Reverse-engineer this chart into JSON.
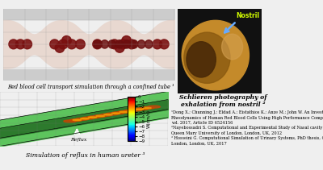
{
  "bg_color": "#efefef",
  "title_rbc": "Red blood cell transport simulation through a confined tube ¹",
  "title_ureter": "Simulation of reflux in human ureter ³",
  "title_schlieren": "Schlieren photography of\nexhalation from nostril ²",
  "colorbar_label": "W(cm/s)",
  "reflux_label": "Reflux",
  "nostril_label": "Nostril",
  "ref1": "¹Dong X.; Chunning J.; Eldad A.; Eistathios K.; Anze M.; John W. An Investigation on the Aggregation and\nRheodynamics of Human Red Blood Cells Using High Performance Computations. Scientifica 2017,\nvol. 2017, Article ID 6524156",
  "ref2": "²Nayebossadri S. Computational and Experimental Study of Nasal cavity Airflow Dynamics. PhD thesis\nQueen Mary University of London, London, UK, 2012",
  "ref3": "³ Hosseini G. Computational Simulation of Urinary Systems, PhD thesis, Queen Mary University of\nLondon, London, UK, 2017"
}
